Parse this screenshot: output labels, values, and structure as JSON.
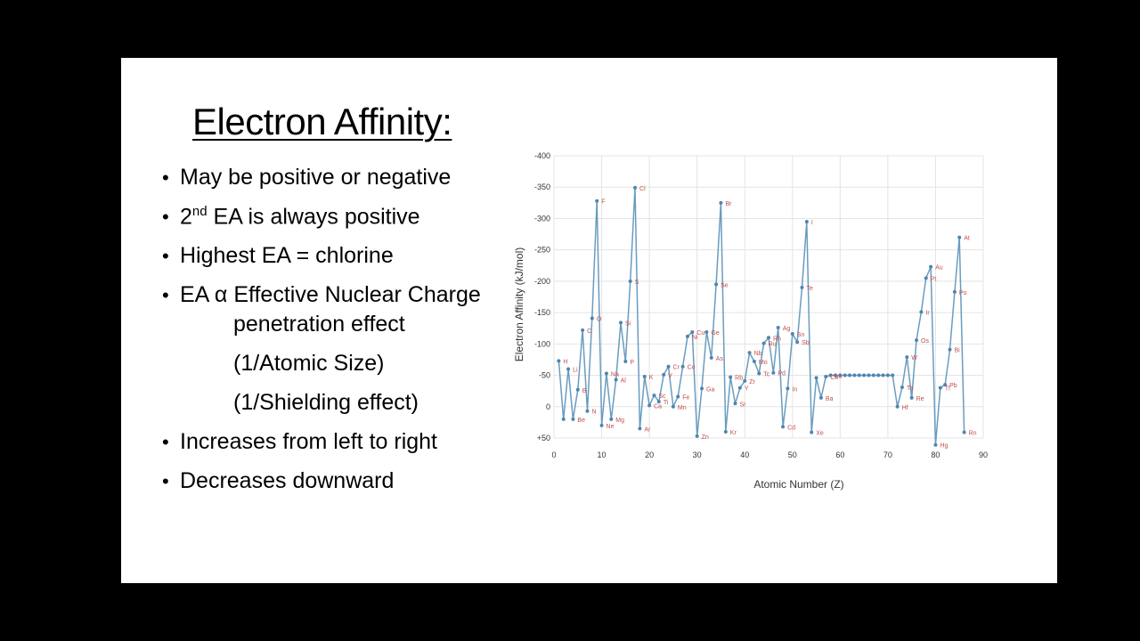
{
  "slide": {
    "title": "Electron Affinity:",
    "bullets": [
      {
        "bullet": "•",
        "text": "May be positive or negative"
      },
      {
        "bullet": "•",
        "pre": "2",
        "sup": "nd",
        "post": " EA is always positive"
      },
      {
        "bullet": "•",
        "text": "Highest EA = chlorine"
      },
      {
        "bullet": "•",
        "text": "EA α Effective Nuclear Charge"
      },
      {
        "bullet": "•",
        "text": "Increases from left to right"
      },
      {
        "bullet": "•",
        "text": "Decreases downward"
      }
    ],
    "sub_items": [
      "penetration effect",
      "(1/Atomic Size)",
      "(1/Shielding effect)"
    ]
  },
  "chart_data": {
    "type": "line",
    "xlabel": "Atomic Number (Z)",
    "ylabel": "Electron Affinity (kJ/mol)",
    "xlim": [
      0,
      90
    ],
    "ylim": [
      50,
      -400
    ],
    "x_ticks": [
      "0",
      "10",
      "20",
      "30",
      "40",
      "50",
      "60",
      "70",
      "80",
      "90"
    ],
    "y_ticks": [
      "-400",
      "-350",
      "-300",
      "-250",
      "-200",
      "-150",
      "-100",
      "-50",
      "0",
      "+50"
    ],
    "line_color": "#6a9cc0",
    "marker_color": "#4f85b0",
    "label_color": "#c0504d",
    "series": [
      {
        "x": [
          1,
          2,
          3,
          4,
          5,
          6,
          7,
          8,
          9,
          10,
          11,
          12,
          13,
          14,
          15,
          16,
          17,
          18,
          19,
          20,
          21,
          22,
          23,
          24,
          25,
          26,
          27,
          28,
          29,
          30,
          31,
          32,
          33,
          34,
          35,
          36,
          37,
          38,
          39,
          40,
          41,
          42,
          43,
          44,
          45,
          46,
          47,
          48,
          49,
          50,
          51,
          52,
          53,
          54,
          55,
          56,
          57,
          58,
          59,
          60,
          61,
          62,
          63,
          64,
          65,
          66,
          67,
          68,
          69,
          70,
          71,
          72,
          73,
          74,
          75,
          76,
          77,
          78,
          79,
          80,
          81,
          82,
          83,
          84,
          85,
          86
        ],
        "y": [
          -73,
          20,
          -60,
          20,
          -27,
          -122,
          7,
          -141,
          -328,
          30,
          -53,
          20,
          -43,
          -134,
          -72,
          -200,
          -349,
          35,
          -48,
          -2,
          -18,
          -8,
          -51,
          -64,
          0,
          -16,
          -64,
          -112,
          -119,
          47,
          -29,
          -119,
          -78,
          -195,
          -325,
          40,
          -47,
          -5,
          -30,
          -41,
          -86,
          -72,
          -53,
          -101,
          -110,
          -54,
          -126,
          32,
          -29,
          -116,
          -103,
          -190,
          -295,
          41,
          -46,
          -14,
          -48,
          -50,
          -50,
          -50,
          -50,
          -50,
          -50,
          -50,
          -50,
          -50,
          -50,
          -50,
          -50,
          -50,
          -50,
          0,
          -31,
          -79,
          -14,
          -106,
          -151,
          -205,
          -223,
          61,
          -30,
          -35,
          -91,
          -183,
          -270,
          41
        ]
      }
    ],
    "point_labels": [
      {
        "x": 1,
        "text": "H"
      },
      {
        "x": 3,
        "text": "Li"
      },
      {
        "x": 4,
        "text": "Be"
      },
      {
        "x": 5,
        "text": "B"
      },
      {
        "x": 6,
        "text": "C"
      },
      {
        "x": 7,
        "text": "N"
      },
      {
        "x": 8,
        "text": "O"
      },
      {
        "x": 9,
        "text": "F"
      },
      {
        "x": 10,
        "text": "Ne"
      },
      {
        "x": 11,
        "text": "Na"
      },
      {
        "x": 12,
        "text": "Mg"
      },
      {
        "x": 13,
        "text": "Al"
      },
      {
        "x": 14,
        "text": "Si"
      },
      {
        "x": 15,
        "text": "P"
      },
      {
        "x": 16,
        "text": "S"
      },
      {
        "x": 17,
        "text": "Cl"
      },
      {
        "x": 18,
        "text": "Ar"
      },
      {
        "x": 19,
        "text": "K"
      },
      {
        "x": 20,
        "text": "Ca"
      },
      {
        "x": 21,
        "text": "Sc"
      },
      {
        "x": 22,
        "text": "Ti"
      },
      {
        "x": 23,
        "text": "V"
      },
      {
        "x": 24,
        "text": "Cr"
      },
      {
        "x": 25,
        "text": "Mn"
      },
      {
        "x": 26,
        "text": "Fe"
      },
      {
        "x": 27,
        "text": "Co"
      },
      {
        "x": 28,
        "text": "Ni"
      },
      {
        "x": 29,
        "text": "Cu"
      },
      {
        "x": 30,
        "text": "Zn"
      },
      {
        "x": 31,
        "text": "Ga"
      },
      {
        "x": 32,
        "text": "Ge"
      },
      {
        "x": 33,
        "text": "As"
      },
      {
        "x": 34,
        "text": "Se"
      },
      {
        "x": 35,
        "text": "Br"
      },
      {
        "x": 36,
        "text": "Kr"
      },
      {
        "x": 37,
        "text": "Rb"
      },
      {
        "x": 38,
        "text": "Sr"
      },
      {
        "x": 39,
        "text": "Y"
      },
      {
        "x": 40,
        "text": "Zr"
      },
      {
        "x": 41,
        "text": "Nb"
      },
      {
        "x": 42,
        "text": "Mo"
      },
      {
        "x": 43,
        "text": "Tc"
      },
      {
        "x": 44,
        "text": "Ru"
      },
      {
        "x": 45,
        "text": "Rh"
      },
      {
        "x": 46,
        "text": "Pd"
      },
      {
        "x": 47,
        "text": "Ag"
      },
      {
        "x": 48,
        "text": "Cd"
      },
      {
        "x": 49,
        "text": "In"
      },
      {
        "x": 50,
        "text": "Sn"
      },
      {
        "x": 51,
        "text": "Sb"
      },
      {
        "x": 52,
        "text": "Te"
      },
      {
        "x": 53,
        "text": "I"
      },
      {
        "x": 54,
        "text": "Xe"
      },
      {
        "x": 56,
        "text": "Ba"
      },
      {
        "x": 57,
        "text": "Ce"
      },
      {
        "x": 58,
        "text": "La"
      },
      {
        "x": 72,
        "text": "Hf"
      },
      {
        "x": 73,
        "text": "Ta"
      },
      {
        "x": 74,
        "text": "W"
      },
      {
        "x": 75,
        "text": "Re"
      },
      {
        "x": 76,
        "text": "Os"
      },
      {
        "x": 77,
        "text": "Ir"
      },
      {
        "x": 78,
        "text": "Pt"
      },
      {
        "x": 79,
        "text": "Au"
      },
      {
        "x": 80,
        "text": "Hg"
      },
      {
        "x": 81,
        "text": "Tl"
      },
      {
        "x": 82,
        "text": "Pb"
      },
      {
        "x": 83,
        "text": "Bi"
      },
      {
        "x": 84,
        "text": "Po"
      },
      {
        "x": 85,
        "text": "At"
      },
      {
        "x": 86,
        "text": "Rn"
      }
    ]
  }
}
